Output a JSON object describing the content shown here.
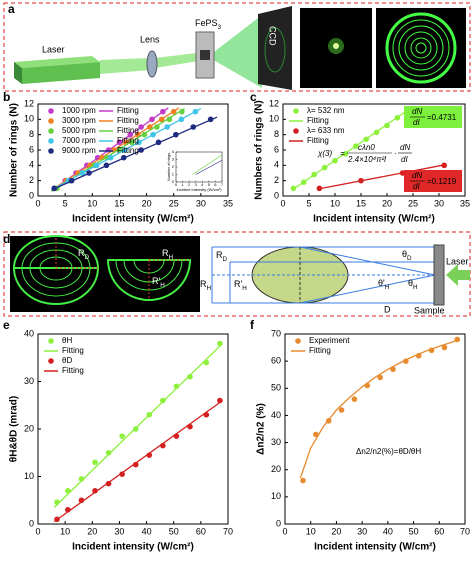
{
  "panel_a": {
    "label": "a",
    "laser": "Laser",
    "lens": "Lens",
    "sample": {
      "main": "FePS",
      "sub": "3"
    },
    "camera": "CCD"
  },
  "panel_d": {
    "label": "d",
    "image_labels": [
      {
        "main": "R",
        "sub": "D"
      },
      {
        "main": "R",
        "sub": "H"
      },
      {
        "main": "R'",
        "sub": "H"
      }
    ],
    "diagram_labels": [
      {
        "main": "R",
        "sub": "D"
      },
      {
        "main": "R",
        "sub": "H"
      },
      {
        "main": "R'",
        "sub": "H"
      },
      {
        "main": "θ",
        "sub": "D"
      },
      {
        "main": "θ",
        "sub": "H"
      },
      {
        "main": "θ'",
        "sub": "H"
      }
    ],
    "distance": "D",
    "sample": "Sample",
    "laser": "Laser"
  },
  "chart_data": [
    {
      "type": "scatter",
      "panel_label": "b",
      "xlabel": "Incident intensity (W/cm²)",
      "ylabel": "Number of rings (N)",
      "xlim": [
        0,
        35
      ],
      "xticks": [
        0,
        5,
        10,
        15,
        20,
        25,
        30,
        35
      ],
      "ylim": [
        0,
        12
      ],
      "yticks": [
        0,
        2,
        4,
        6,
        8,
        10,
        12
      ],
      "legend": "upper left",
      "legend_columns": 2,
      "series": [
        {
          "name": "1000 rpm",
          "style": "points",
          "color": "#c33cc8",
          "x": [
            3,
            5,
            7,
            9,
            11,
            13,
            15,
            17,
            19,
            21,
            23
          ],
          "values": [
            1,
            2,
            3,
            4,
            5,
            6,
            7,
            8,
            9,
            10,
            11
          ]
        },
        {
          "name": "Fitting",
          "style": "line",
          "color": "#c33cc8",
          "x": [
            2.5,
            24
          ],
          "values": [
            0.7,
            11.5
          ]
        },
        {
          "name": "3000 rpm",
          "style": "points",
          "color": "#f08020",
          "x": [
            3,
            5.2,
            7.4,
            9.6,
            11.8,
            14,
            16.2,
            18.4,
            20.6,
            22.8,
            25
          ],
          "values": [
            1,
            2,
            3,
            4,
            5,
            6,
            7,
            8,
            9,
            10,
            11
          ]
        },
        {
          "name": "Fitting",
          "style": "line",
          "color": "#f08020",
          "x": [
            2.5,
            26
          ],
          "values": [
            0.8,
            11.5
          ]
        },
        {
          "name": "5000 rpm",
          "style": "points",
          "color": "#66d040",
          "x": [
            3.5,
            5.8,
            8.1,
            10.4,
            12.7,
            15,
            17.3,
            19.6,
            21.9,
            24.2,
            26.5
          ],
          "values": [
            1,
            2,
            3,
            4,
            5,
            6,
            7,
            8,
            9,
            10,
            11
          ]
        },
        {
          "name": "Fitting",
          "style": "line",
          "color": "#66d040",
          "x": [
            2.5,
            27
          ],
          "values": [
            0.6,
            11.4
          ]
        },
        {
          "name": "7000 rpm",
          "style": "points",
          "color": "#40c4e8",
          "x": [
            3,
            5.6,
            8.2,
            10.8,
            13.4,
            16,
            18.6,
            21.2,
            23.8,
            26.4,
            29
          ],
          "values": [
            1,
            2,
            3,
            4,
            5,
            6,
            7,
            8,
            9,
            10,
            11
          ]
        },
        {
          "name": "Fitting",
          "style": "line",
          "color": "#40c4e8",
          "x": [
            2.5,
            30
          ],
          "values": [
            0.8,
            11.4
          ]
        },
        {
          "name": "9000 rpm",
          "style": "points",
          "color": "#1f2a80",
          "x": [
            3,
            6.2,
            9.4,
            12.6,
            15.8,
            19,
            22.2,
            25.4,
            28.6,
            31.8
          ],
          "values": [
            1,
            2,
            3,
            4,
            5,
            6,
            7,
            8,
            9,
            10
          ]
        },
        {
          "name": "Fitting",
          "style": "line",
          "color": "#1f2a80",
          "x": [
            2.5,
            33
          ],
          "values": [
            0.8,
            10.3
          ]
        }
      ]
    },
    {
      "type": "line",
      "xlabel": "Incident intensity (W/cm²)",
      "ylabel": "Number of rings",
      "xlim": [
        0,
        7
      ],
      "xticks": [
        0,
        1,
        2,
        3,
        4,
        5,
        6,
        7
      ],
      "ylim": [
        0,
        4
      ],
      "yticks": [
        0,
        1,
        2,
        3,
        4
      ],
      "series": [
        {
          "style": "line",
          "color": "#66d040",
          "x": [
            2.5,
            7
          ],
          "values": [
            1,
            3.6
          ]
        },
        {
          "style": "line",
          "color": "#1f2a80",
          "x": [
            3,
            7
          ],
          "values": [
            1,
            2.9
          ]
        }
      ]
    },
    {
      "type": "scatter",
      "panel_label": "c",
      "xlabel": "Incident intensity (W/cm²)",
      "ylabel": "Numbers of rings (N)",
      "xlim": [
        0,
        35
      ],
      "xticks": [
        0,
        5,
        10,
        15,
        20,
        25,
        30,
        35
      ],
      "ylim": [
        0,
        12
      ],
      "yticks": [
        0,
        2,
        4,
        6,
        8,
        10,
        12
      ],
      "legend": "upper left",
      "legend_columns": 1,
      "series": [
        {
          "name": "λ= 532 nm",
          "style": "points",
          "color": "#8cf03c",
          "x": [
            2,
            4,
            6,
            8,
            10,
            12,
            14,
            16,
            18,
            20,
            22,
            24
          ],
          "values": [
            1,
            1.8,
            2.8,
            3.7,
            4.6,
            5.5,
            6.5,
            7.4,
            8.3,
            9.2,
            10.2,
            11
          ]
        },
        {
          "name": "Fitting",
          "style": "line",
          "color": "#8cf03c",
          "x": [
            2,
            24
          ],
          "values": [
            0.9,
            11.2
          ]
        },
        {
          "name": "λ= 633 nm",
          "style": "points",
          "color": "#d42020",
          "x": [
            7,
            15,
            23,
            31
          ],
          "values": [
            1,
            2,
            3,
            4
          ]
        },
        {
          "name": "Fitting",
          "style": "line",
          "color": "#d42020",
          "x": [
            7,
            31
          ],
          "values": [
            0.95,
            4.05
          ]
        }
      ],
      "slope_labels": [
        {
          "num": "dN",
          "den": "dI",
          "value": "=0.4731"
        },
        {
          "num": "dN",
          "den": "dI",
          "value": "=0.1219"
        }
      ],
      "formula": {
        "lhs": "χ(3)",
        "eq": "=",
        "num": "cλn0",
        "den": "2.4×10⁴π²l",
        "dot": "·",
        "num2": "dN",
        "den2": "dI"
      }
    },
    {
      "type": "scatter",
      "panel_label": "e",
      "xlabel": "Incident intensity (W/cm²)",
      "ylabel": "θH&θD (mrad)",
      "xlim": [
        0,
        70
      ],
      "xticks": [
        0,
        10,
        20,
        30,
        40,
        50,
        60,
        70
      ],
      "ylim": [
        0,
        40
      ],
      "yticks": [
        0,
        10,
        20,
        30,
        40
      ],
      "legend": "upper left",
      "legend_columns": 1,
      "series": [
        {
          "name": "θH",
          "style": "points",
          "color": "#8cf03c",
          "x": [
            7,
            11,
            16,
            21,
            26,
            31,
            36,
            41,
            46,
            51,
            56,
            62,
            67
          ],
          "values": [
            4.6,
            7,
            9.5,
            13,
            15,
            18.5,
            20,
            23,
            26,
            29,
            31,
            34,
            38
          ]
        },
        {
          "name": "Fitting",
          "style": "line",
          "color": "#8cf03c",
          "x": [
            6,
            68
          ],
          "values": [
            3.5,
            38
          ]
        },
        {
          "name": "θD",
          "style": "points",
          "color": "#d42020",
          "x": [
            7,
            11,
            16,
            21,
            26,
            31,
            36,
            41,
            46,
            51,
            56,
            62,
            67
          ],
          "values": [
            1,
            3,
            5,
            7,
            8.5,
            10.5,
            12.5,
            14.5,
            16.5,
            18.5,
            20.5,
            23,
            26
          ]
        },
        {
          "name": "Fitting",
          "style": "line",
          "color": "#d42020",
          "x": [
            6,
            68
          ],
          "values": [
            0.5,
            26
          ]
        }
      ]
    },
    {
      "type": "scatter",
      "panel_label": "f",
      "xlabel": "Incident intensity (W/cm²)",
      "ylabel": "Δn2/n2 (%)",
      "xlim": [
        0,
        70
      ],
      "xticks": [
        0,
        10,
        20,
        30,
        40,
        50,
        60,
        70
      ],
      "ylim": [
        0,
        70
      ],
      "yticks": [
        0,
        10,
        20,
        30,
        40,
        50,
        60,
        70
      ],
      "legend": "upper left",
      "legend_columns": 1,
      "series": [
        {
          "name": "Experiment",
          "style": "points",
          "color": "#e88a30",
          "x": [
            7,
            12,
            17,
            22,
            27,
            32,
            37,
            42,
            47,
            52,
            57,
            62,
            67
          ],
          "values": [
            16,
            33,
            38,
            42,
            46,
            51,
            54,
            57,
            60,
            62,
            64,
            65,
            68
          ]
        },
        {
          "name": "Fitting",
          "style": "line",
          "color": "#e88a30",
          "x": [
            6,
            10,
            15,
            20,
            25,
            30,
            35,
            40,
            45,
            50,
            55,
            60,
            65,
            68
          ],
          "values": [
            17,
            28,
            36,
            42,
            46.5,
            50.5,
            54,
            57,
            59.5,
            61.8,
            63.8,
            65.5,
            67,
            68
          ]
        }
      ],
      "annotation": "Δn2/n2(%)=θD/θH"
    }
  ]
}
